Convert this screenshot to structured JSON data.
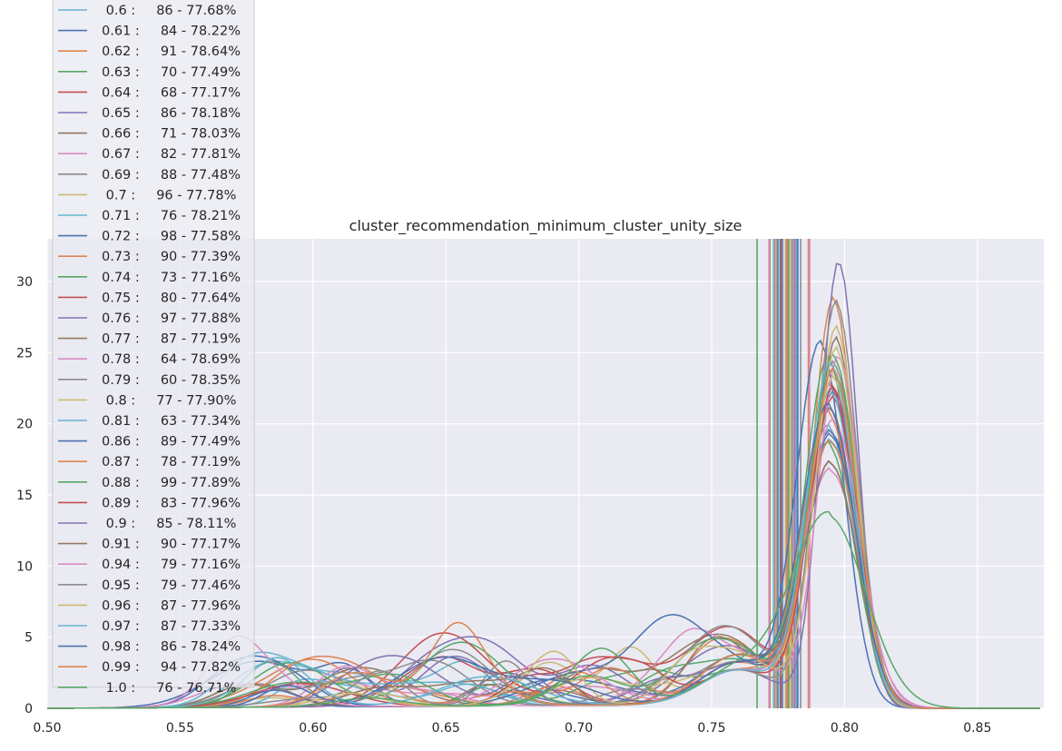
{
  "chart_data": {
    "type": "line",
    "title": "cluster_recommendation_minimum_cluster_unity_size",
    "xlabel": "",
    "ylabel": "",
    "xlim": [
      0.5,
      0.875
    ],
    "ylim": [
      0,
      33
    ],
    "x_ticks": [
      "0.50",
      "0.55",
      "0.60",
      "0.65",
      "0.70",
      "0.75",
      "0.80",
      "0.85"
    ],
    "y_ticks": [
      "0",
      "5",
      "10",
      "15",
      "20",
      "25",
      "30"
    ],
    "grid": true,
    "legend_position": "left, overflowing above plot",
    "series": [
      {
        "name": " 0.6 :     86 - 77.68%",
        "color": "#64b5cd",
        "peak_x": 0.795,
        "peak_y": 18.6,
        "width": 0.01,
        "vline": 0.7768
      },
      {
        "name": "0.61 :     84 - 78.22%",
        "color": "#4c72b0",
        "peak_x": 0.791,
        "peak_y": 25.3,
        "width": 0.009,
        "vline": 0.7822
      },
      {
        "name": "0.62 :     91 - 78.64%",
        "color": "#dd8452",
        "peak_x": 0.796,
        "peak_y": 28.5,
        "width": 0.008,
        "vline": 0.7864
      },
      {
        "name": "0.63 :     70 - 77.49%",
        "color": "#55a868",
        "peak_x": 0.794,
        "peak_y": 24.3,
        "width": 0.009,
        "vline": 0.7749
      },
      {
        "name": "0.64 :     68 - 77.17%",
        "color": "#c44e52",
        "peak_x": 0.795,
        "peak_y": 22.5,
        "width": 0.009,
        "vline": 0.7717
      },
      {
        "name": "0.65 :     86 - 78.18%",
        "color": "#8172b3",
        "peak_x": 0.796,
        "peak_y": 21.9,
        "width": 0.009,
        "vline": 0.7818
      },
      {
        "name": "0.66 :     71 - 78.03%",
        "color": "#937860",
        "peak_x": 0.797,
        "peak_y": 25.7,
        "width": 0.008,
        "vline": 0.7803
      },
      {
        "name": "0.67 :     82 - 77.81%",
        "color": "#da8bc3",
        "peak_x": 0.795,
        "peak_y": 16.5,
        "width": 0.011,
        "vline": 0.7781
      },
      {
        "name": "0.69 :     88 - 77.48%",
        "color": "#8c8c8c",
        "peak_x": 0.796,
        "peak_y": 24.0,
        "width": 0.009,
        "vline": 0.7748
      },
      {
        "name": " 0.7 :     96 - 77.78%",
        "color": "#ccb974",
        "peak_x": 0.797,
        "peak_y": 26.5,
        "width": 0.008,
        "vline": 0.7778
      },
      {
        "name": "0.71 :     76 - 78.21%",
        "color": "#64b5cd",
        "peak_x": 0.794,
        "peak_y": 19.5,
        "width": 0.01,
        "vline": 0.7821
      },
      {
        "name": "0.72 :     98 - 77.58%",
        "color": "#4c72b0",
        "peak_x": 0.795,
        "peak_y": 19.2,
        "width": 0.01,
        "vline": 0.7758
      },
      {
        "name": "0.73 :     90 - 77.39%",
        "color": "#dd8452",
        "peak_x": 0.794,
        "peak_y": 20.5,
        "width": 0.01,
        "vline": 0.7739
      },
      {
        "name": "0.74 :     73 - 77.16%",
        "color": "#55a868",
        "peak_x": 0.794,
        "peak_y": 18.3,
        "width": 0.01,
        "vline": 0.7716
      },
      {
        "name": "0.75 :     80 - 77.64%",
        "color": "#c44e52",
        "peak_x": 0.796,
        "peak_y": 21.5,
        "width": 0.009,
        "vline": 0.7764
      },
      {
        "name": "0.76 :     97 - 77.88%",
        "color": "#8172b3",
        "peak_x": 0.798,
        "peak_y": 31.2,
        "width": 0.007,
        "vline": 0.7788
      },
      {
        "name": "0.77 :     87 - 77.19%",
        "color": "#937860",
        "peak_x": 0.795,
        "peak_y": 20.8,
        "width": 0.009,
        "vline": 0.7719
      },
      {
        "name": "0.78 :     64 - 78.69%",
        "color": "#da8bc3",
        "peak_x": 0.798,
        "peak_y": 24.5,
        "width": 0.008,
        "vline": 0.7869
      },
      {
        "name": "0.79 :     60 - 78.35%",
        "color": "#8c8c8c",
        "peak_x": 0.797,
        "peak_y": 28.3,
        "width": 0.008,
        "vline": 0.7835
      },
      {
        "name": " 0.8 :     77 - 77.90%",
        "color": "#ccb974",
        "peak_x": 0.796,
        "peak_y": 23.0,
        "width": 0.009,
        "vline": 0.779
      },
      {
        "name": "0.81 :     63 - 77.34%",
        "color": "#64b5cd",
        "peak_x": 0.795,
        "peak_y": 22.0,
        "width": 0.009,
        "vline": 0.7734
      },
      {
        "name": "0.86 :     89 - 77.49%",
        "color": "#4c72b0",
        "peak_x": 0.795,
        "peak_y": 19.0,
        "width": 0.01,
        "vline": 0.7749
      },
      {
        "name": "0.87 :     78 - 77.19%",
        "color": "#dd8452",
        "peak_x": 0.795,
        "peak_y": 18.5,
        "width": 0.01,
        "vline": 0.7719
      },
      {
        "name": "0.88 :     99 - 77.89%",
        "color": "#55a868",
        "peak_x": 0.796,
        "peak_y": 24.5,
        "width": 0.009,
        "vline": 0.7789
      },
      {
        "name": "0.89 :     83 - 77.96%",
        "color": "#c44e52",
        "peak_x": 0.796,
        "peak_y": 22.3,
        "width": 0.009,
        "vline": 0.7796
      },
      {
        "name": " 0.9 :     85 - 78.11%",
        "color": "#8172b3",
        "peak_x": 0.795,
        "peak_y": 17.0,
        "width": 0.01,
        "vline": 0.7811
      },
      {
        "name": "0.91 :     90 - 77.17%",
        "color": "#937860",
        "peak_x": 0.795,
        "peak_y": 17.0,
        "width": 0.01,
        "vline": 0.7717
      },
      {
        "name": "0.94 :     79 - 77.16%",
        "color": "#da8bc3",
        "peak_x": 0.796,
        "peak_y": 20.0,
        "width": 0.01,
        "vline": 0.7716
      },
      {
        "name": "0.95 :     79 - 77.46%",
        "color": "#8c8c8c",
        "peak_x": 0.796,
        "peak_y": 23.5,
        "width": 0.009,
        "vline": 0.7746
      },
      {
        "name": "0.96 :     87 - 77.96%",
        "color": "#ccb974",
        "peak_x": 0.797,
        "peak_y": 25.0,
        "width": 0.008,
        "vline": 0.7796
      },
      {
        "name": "0.97 :     87 - 77.33%",
        "color": "#64b5cd",
        "peak_x": 0.795,
        "peak_y": 24.0,
        "width": 0.009,
        "vline": 0.7733
      },
      {
        "name": "0.98 :     86 - 78.24%",
        "color": "#4c72b0",
        "peak_x": 0.794,
        "peak_y": 21.0,
        "width": 0.01,
        "vline": 0.7824
      },
      {
        "name": "0.99 :     94 - 77.82%",
        "color": "#dd8452",
        "peak_x": 0.796,
        "peak_y": 23.5,
        "width": 0.009,
        "vline": 0.7782
      },
      {
        "name": " 1.0 :     76 - 76.71%",
        "color": "#55a868",
        "peak_x": 0.794,
        "peak_y": 13.4,
        "width": 0.014,
        "vline": 0.7671
      }
    ]
  }
}
